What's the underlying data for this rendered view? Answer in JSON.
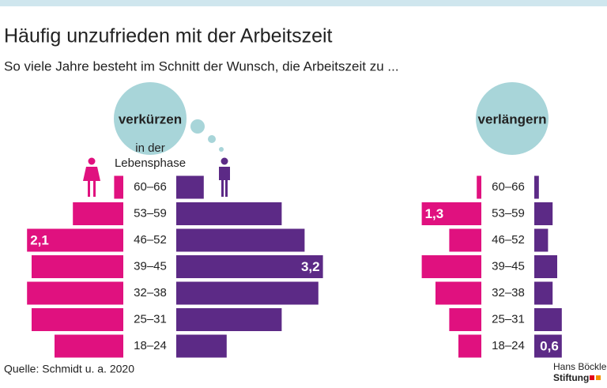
{
  "chart_data": {
    "type": "pyramid",
    "title": "Häufig unzufrieden mit der Arbeitszeit",
    "subtitle": "So viele Jahre besteht im Schnitt der Wunsch, die Arbeitszeit zu ...",
    "age_header": [
      "in der",
      "Lebensphase"
    ],
    "categories": [
      "60–66",
      "53–59",
      "46–52",
      "39–45",
      "32–38",
      "25–31",
      "18–24"
    ],
    "panels": [
      {
        "label": "verkürzen",
        "series": [
          {
            "color": "#e0117f",
            "values": [
              0.2,
              1.1,
              2.1,
              2.0,
              2.1,
              2.0,
              1.5
            ],
            "value_labels": [
              null,
              null,
              "2,1",
              null,
              null,
              null,
              null
            ]
          },
          {
            "color": "#5c2a86",
            "values": [
              0.6,
              2.3,
              2.8,
              3.2,
              3.1,
              2.3,
              1.1
            ],
            "value_labels": [
              null,
              null,
              null,
              "3,2",
              null,
              null,
              null
            ]
          }
        ]
      },
      {
        "label": "verlängern",
        "series": [
          {
            "color": "#e0117f",
            "values": [
              0.1,
              1.3,
              0.7,
              1.3,
              1.0,
              0.7,
              0.5
            ],
            "value_labels": [
              null,
              "1,3",
              null,
              null,
              null,
              null,
              null
            ]
          },
          {
            "color": "#5c2a86",
            "values": [
              0.1,
              0.4,
              0.3,
              0.5,
              0.4,
              0.6,
              0.6
            ],
            "value_labels": [
              null,
              null,
              null,
              null,
              null,
              null,
              "0,6"
            ]
          }
        ]
      }
    ],
    "source": "Quelle: Schmidt u. a. 2020",
    "logo": [
      "Hans Böckler",
      "Stiftung"
    ]
  }
}
